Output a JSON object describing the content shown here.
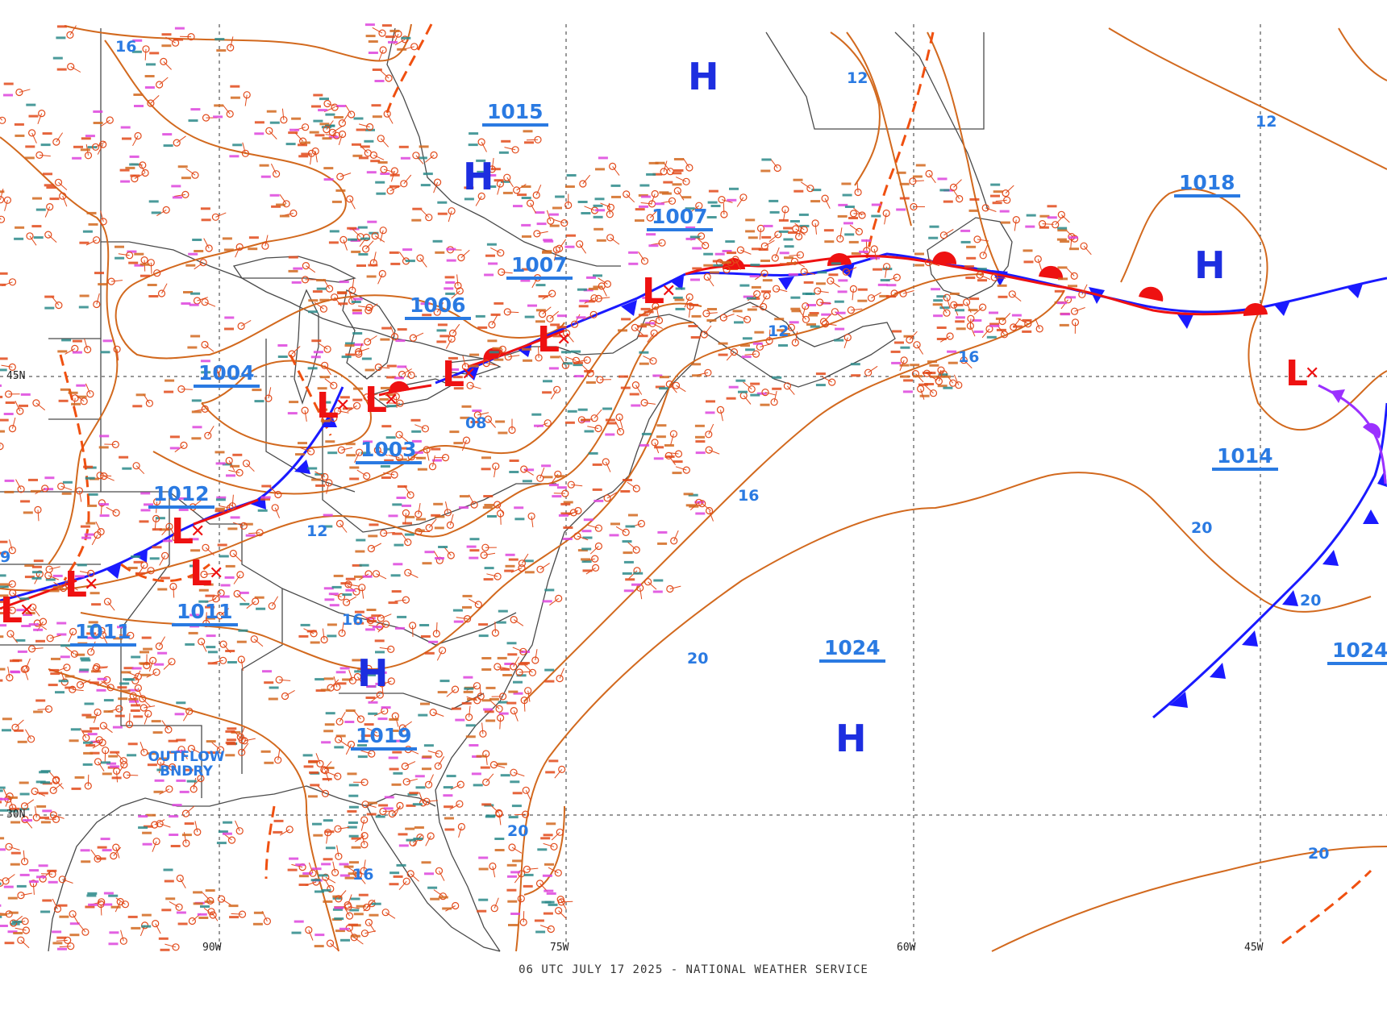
{
  "title": "06 UTC JULY 17 2025 - NATIONAL WEATHER SERVICE",
  "colors": {
    "isobar": "#d2691e",
    "trough": "#f05010",
    "cold_front": "#1a1aff",
    "warm_front": "#ee1111",
    "occluded_front": "#9b30ff",
    "coast": "#4a4a4a",
    "grid": "#333333",
    "label_blue": "#2a7ae2",
    "high": "#1d2ee0",
    "low": "#ee1111"
  },
  "longitudes": [
    "90W",
    "75W",
    "60W",
    "45W"
  ],
  "latitudes": [
    "45N",
    "30N"
  ],
  "pressure_labels": [
    "1015",
    "1007",
    "1007",
    "1006",
    "1004",
    "1003",
    "1012",
    "1011",
    "1011",
    "1019",
    "1018",
    "1014",
    "1024",
    "1024"
  ],
  "isobar_labels": [
    "16",
    "12",
    "12",
    "12",
    "16",
    "16",
    "12",
    "08",
    "16",
    "20",
    "20",
    "20",
    "20",
    "16",
    "20",
    "9",
    "20"
  ],
  "highs": [
    "H",
    "H",
    "H",
    "H",
    "H",
    "H"
  ],
  "lows": [
    "L",
    "L",
    "L",
    "L",
    "L",
    "L",
    "L",
    "L",
    "L",
    "L",
    "L"
  ],
  "annotation": "OUTFLOW BNDRY"
}
